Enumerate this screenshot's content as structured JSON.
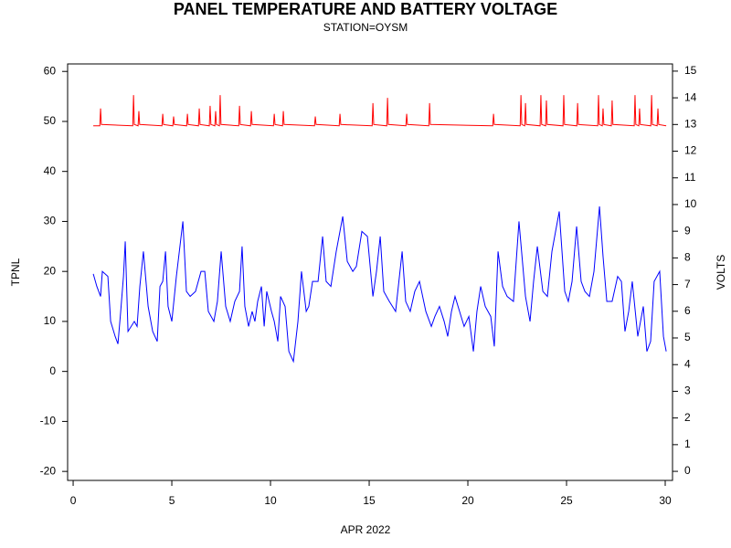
{
  "chart_data": {
    "type": "line",
    "title": "PANEL TEMPERATURE AND BATTERY VOLTAGE",
    "subtitle": "STATION=OYSM",
    "x_label": "APR 2022",
    "y_label": "TPNL",
    "y2_label": "VOLTS",
    "xlim": [
      -0.28,
      30.37
    ],
    "xticks": [
      0,
      5,
      10,
      15,
      20,
      25,
      30
    ],
    "ylim": [
      -21.8,
      61.5
    ],
    "yticks": [
      -20,
      -10,
      0,
      10,
      20,
      30,
      40,
      50,
      60
    ],
    "y2lim": [
      -0.34,
      15.27
    ],
    "y2ticks": [
      0,
      1,
      2,
      3,
      4,
      5,
      6,
      7,
      8,
      9,
      10,
      11,
      12,
      13,
      14,
      15
    ],
    "series": [
      {
        "name": "TPNL",
        "color": "#0000ff",
        "x": [
          1.02,
          1.2,
          1.39,
          1.48,
          1.76,
          1.9,
          2.13,
          2.27,
          2.41,
          2.55,
          2.64,
          2.78,
          3.1,
          3.24,
          3.38,
          3.56,
          3.8,
          4.03,
          4.26,
          4.4,
          4.54,
          4.68,
          4.81,
          5.0,
          5.23,
          5.56,
          5.74,
          5.93,
          6.2,
          6.48,
          6.67,
          6.85,
          7.13,
          7.31,
          7.5,
          7.73,
          7.96,
          8.19,
          8.43,
          8.56,
          8.7,
          8.89,
          9.07,
          9.21,
          9.35,
          9.54,
          9.68,
          9.81,
          10.05,
          10.19,
          10.37,
          10.51,
          10.74,
          10.93,
          11.16,
          11.39,
          11.57,
          11.81,
          11.94,
          12.13,
          12.41,
          12.64,
          12.82,
          13.06,
          13.33,
          13.66,
          13.89,
          14.17,
          14.35,
          14.63,
          14.91,
          15.19,
          15.37,
          15.56,
          15.74,
          16.02,
          16.34,
          16.67,
          16.85,
          17.08,
          17.31,
          17.55,
          17.87,
          18.15,
          18.33,
          18.56,
          18.8,
          18.98,
          19.17,
          19.35,
          19.58,
          19.81,
          20.05,
          20.28,
          20.46,
          20.65,
          20.88,
          21.16,
          21.34,
          21.53,
          21.76,
          21.99,
          22.31,
          22.59,
          22.92,
          23.15,
          23.33,
          23.52,
          23.8,
          24.03,
          24.26,
          24.63,
          24.91,
          25.09,
          25.28,
          25.51,
          25.74,
          25.93,
          26.16,
          26.39,
          26.67,
          26.85,
          27.04,
          27.31,
          27.59,
          27.78,
          27.96,
          28.15,
          28.33,
          28.61,
          28.89,
          29.07,
          29.26,
          29.44,
          29.72,
          29.91,
          30.05
        ],
        "values": [
          19.5,
          17,
          15,
          20,
          19,
          10,
          7,
          5.5,
          12,
          19,
          26,
          8,
          10,
          9,
          17,
          24,
          13,
          8,
          6,
          17,
          18,
          24,
          13,
          10,
          19,
          30,
          16,
          15,
          16,
          20,
          20,
          12,
          10,
          14,
          24,
          13,
          10,
          14,
          16,
          25,
          13,
          9,
          12,
          10,
          14,
          17,
          9,
          16,
          12,
          10,
          6,
          15,
          13,
          4,
          2,
          10,
          20,
          12,
          13,
          18,
          18,
          27,
          18,
          17,
          24,
          31,
          22,
          20,
          21,
          28,
          27,
          15,
          20,
          27,
          16,
          14,
          12,
          24,
          14,
          12,
          16,
          18,
          12,
          9,
          11,
          13,
          10,
          7,
          12,
          15,
          12,
          9,
          11,
          4,
          12,
          17,
          13,
          11,
          5,
          24,
          17,
          15,
          14,
          30,
          15,
          10,
          18,
          25,
          16,
          15,
          24,
          32,
          16,
          14,
          18,
          29,
          18,
          16,
          15,
          20,
          33,
          23,
          14,
          14,
          19,
          18,
          8,
          12,
          18,
          7,
          13,
          4,
          6,
          18,
          20,
          7,
          4
        ]
      },
      {
        "name": "VOLTS",
        "color": "#ff0000",
        "axis": "y2",
        "x": [
          1.02,
          1.35,
          1.39,
          1.43,
          3.02,
          3.06,
          3.1,
          3.29,
          3.33,
          3.37,
          4.5,
          4.54,
          4.58,
          5.05,
          5.09,
          5.13,
          5.75,
          5.79,
          5.83,
          6.35,
          6.39,
          6.43,
          6.9,
          6.94,
          6.98,
          7.18,
          7.22,
          7.26,
          7.41,
          7.45,
          7.49,
          8.39,
          8.43,
          8.47,
          8.99,
          9.03,
          9.07,
          10.15,
          10.19,
          10.23,
          10.61,
          10.65,
          10.69,
          12.23,
          12.27,
          12.31,
          13.48,
          13.52,
          13.56,
          15.15,
          15.19,
          15.23,
          15.89,
          15.93,
          15.97,
          16.86,
          16.9,
          16.94,
          18.02,
          18.06,
          18.1,
          21.26,
          21.3,
          21.34,
          22.65,
          22.69,
          22.73,
          22.88,
          22.92,
          22.96,
          23.66,
          23.7,
          23.74,
          23.94,
          23.98,
          24.02,
          24.82,
          24.86,
          24.9,
          25.52,
          25.56,
          25.6,
          26.58,
          26.62,
          26.66,
          26.81,
          26.85,
          26.89,
          27.27,
          27.31,
          27.35,
          28.43,
          28.47,
          28.51,
          28.66,
          28.7,
          28.74,
          29.27,
          29.31,
          29.35,
          29.59,
          29.63,
          29.67,
          30.05
        ],
        "values": [
          12.95,
          12.95,
          13.6,
          13.0,
          12.95,
          14.1,
          13.0,
          12.95,
          13.5,
          13.0,
          12.95,
          13.4,
          13.0,
          12.95,
          13.3,
          13.0,
          12.95,
          13.4,
          13.0,
          12.95,
          13.6,
          13.0,
          12.95,
          13.7,
          13.0,
          12.95,
          13.5,
          13.0,
          12.95,
          14.1,
          13.0,
          12.95,
          13.7,
          13.0,
          12.95,
          13.5,
          13.0,
          12.95,
          13.4,
          13.0,
          12.95,
          13.5,
          13.0,
          12.95,
          13.3,
          13.0,
          12.95,
          13.4,
          13.0,
          12.95,
          13.8,
          13.0,
          12.95,
          14.0,
          13.0,
          12.95,
          13.4,
          13.0,
          12.95,
          13.8,
          13.0,
          12.95,
          13.4,
          13.0,
          12.95,
          14.1,
          13.0,
          12.95,
          13.8,
          13.0,
          12.95,
          14.1,
          13.0,
          12.95,
          13.9,
          13.0,
          12.95,
          14.1,
          13.0,
          12.95,
          13.8,
          13.0,
          12.95,
          14.1,
          13.0,
          12.95,
          13.6,
          13.0,
          12.95,
          13.9,
          13.0,
          12.95,
          14.1,
          13.0,
          12.95,
          13.6,
          13.0,
          12.95,
          14.1,
          13.0,
          12.95,
          13.6,
          13.0,
          12.95
        ]
      }
    ]
  }
}
